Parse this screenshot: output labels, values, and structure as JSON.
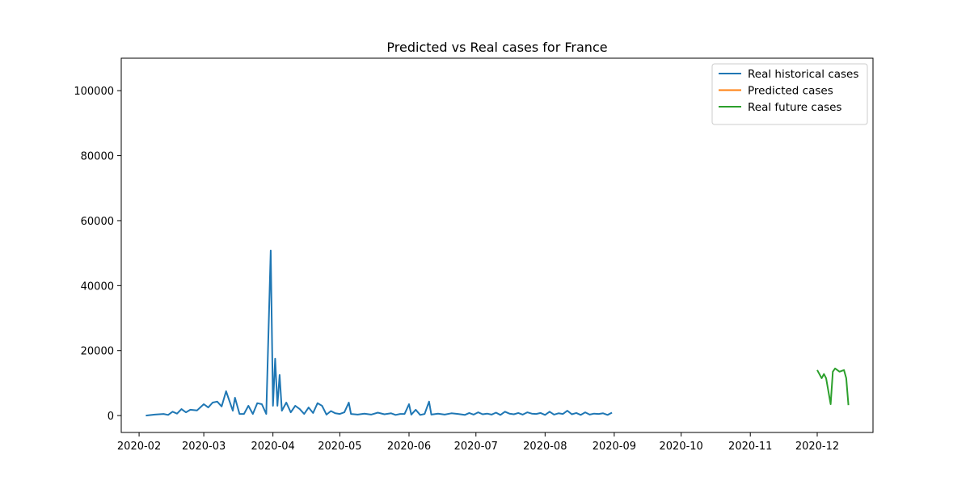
{
  "chart_data": {
    "type": "line",
    "title": "Predicted vs Real cases for France",
    "xlabel": "",
    "ylabel": "",
    "x_ticks": [
      "2020-02",
      "2020-03",
      "2020-04",
      "2020-05",
      "2020-06",
      "2020-07",
      "2020-08",
      "2020-09",
      "2020-10",
      "2020-11",
      "2020-12"
    ],
    "y_ticks": [
      0,
      20000,
      40000,
      60000,
      80000,
      100000
    ],
    "xlim": [
      "2020-01-24",
      "2020-12-26"
    ],
    "ylim": [
      -5200,
      110000
    ],
    "legend_position": "top-right",
    "grid": false,
    "series": [
      {
        "name": "Real historical cases",
        "color": "#1f77b4",
        "points": [
          [
            "2020-02-04",
            0
          ],
          [
            "2020-02-08",
            300
          ],
          [
            "2020-02-12",
            500
          ],
          [
            "2020-02-14",
            200
          ],
          [
            "2020-02-16",
            1200
          ],
          [
            "2020-02-18",
            600
          ],
          [
            "2020-02-20",
            2000
          ],
          [
            "2020-02-22",
            1000
          ],
          [
            "2020-02-24",
            1800
          ],
          [
            "2020-02-27",
            1600
          ],
          [
            "2020-03-01",
            3500
          ],
          [
            "2020-03-03",
            2500
          ],
          [
            "2020-03-05",
            4000
          ],
          [
            "2020-03-07",
            4300
          ],
          [
            "2020-03-09",
            2800
          ],
          [
            "2020-03-11",
            7500
          ],
          [
            "2020-03-14",
            1500
          ],
          [
            "2020-03-15",
            5500
          ],
          [
            "2020-03-17",
            500
          ],
          [
            "2020-03-19",
            500
          ],
          [
            "2020-03-21",
            3000
          ],
          [
            "2020-03-23",
            500
          ],
          [
            "2020-03-25",
            3800
          ],
          [
            "2020-03-27",
            3500
          ],
          [
            "2020-03-29",
            500
          ],
          [
            "2020-03-31",
            50800
          ],
          [
            "2020-04-01",
            3000
          ],
          [
            "2020-04-02",
            17500
          ],
          [
            "2020-04-03",
            3000
          ],
          [
            "2020-04-04",
            12500
          ],
          [
            "2020-04-05",
            1500
          ],
          [
            "2020-04-07",
            4000
          ],
          [
            "2020-04-09",
            1000
          ],
          [
            "2020-04-11",
            3000
          ],
          [
            "2020-04-13",
            2000
          ],
          [
            "2020-04-15",
            500
          ],
          [
            "2020-04-17",
            2500
          ],
          [
            "2020-04-19",
            800
          ],
          [
            "2020-04-21",
            3800
          ],
          [
            "2020-04-23",
            3000
          ],
          [
            "2020-04-25",
            300
          ],
          [
            "2020-04-27",
            1400
          ],
          [
            "2020-04-29",
            700
          ],
          [
            "2020-05-01",
            500
          ],
          [
            "2020-05-03",
            1000
          ],
          [
            "2020-05-05",
            4000
          ],
          [
            "2020-05-06",
            500
          ],
          [
            "2020-05-09",
            300
          ],
          [
            "2020-05-12",
            600
          ],
          [
            "2020-05-15",
            300
          ],
          [
            "2020-05-18",
            900
          ],
          [
            "2020-05-21",
            400
          ],
          [
            "2020-05-24",
            700
          ],
          [
            "2020-05-26",
            200
          ],
          [
            "2020-05-28",
            500
          ],
          [
            "2020-05-30",
            500
          ],
          [
            "2020-06-01",
            3500
          ],
          [
            "2020-06-02",
            300
          ],
          [
            "2020-06-04",
            1800
          ],
          [
            "2020-06-06",
            200
          ],
          [
            "2020-06-08",
            500
          ],
          [
            "2020-06-10",
            4300
          ],
          [
            "2020-06-11",
            300
          ],
          [
            "2020-06-14",
            600
          ],
          [
            "2020-06-17",
            300
          ],
          [
            "2020-06-20",
            700
          ],
          [
            "2020-06-23",
            500
          ],
          [
            "2020-06-26",
            200
          ],
          [
            "2020-06-28",
            800
          ],
          [
            "2020-06-30",
            300
          ],
          [
            "2020-07-02",
            1000
          ],
          [
            "2020-07-04",
            400
          ],
          [
            "2020-07-06",
            600
          ],
          [
            "2020-07-08",
            300
          ],
          [
            "2020-07-10",
            900
          ],
          [
            "2020-07-12",
            200
          ],
          [
            "2020-07-14",
            1200
          ],
          [
            "2020-07-16",
            600
          ],
          [
            "2020-07-18",
            400
          ],
          [
            "2020-07-20",
            800
          ],
          [
            "2020-07-22",
            300
          ],
          [
            "2020-07-24",
            1000
          ],
          [
            "2020-07-26",
            600
          ],
          [
            "2020-07-28",
            500
          ],
          [
            "2020-07-30",
            800
          ],
          [
            "2020-08-01",
            200
          ],
          [
            "2020-08-03",
            1200
          ],
          [
            "2020-08-05",
            300
          ],
          [
            "2020-08-07",
            700
          ],
          [
            "2020-08-09",
            500
          ],
          [
            "2020-08-11",
            1500
          ],
          [
            "2020-08-13",
            400
          ],
          [
            "2020-08-15",
            800
          ],
          [
            "2020-08-17",
            200
          ],
          [
            "2020-08-19",
            1000
          ],
          [
            "2020-08-21",
            300
          ],
          [
            "2020-08-23",
            600
          ],
          [
            "2020-08-25",
            500
          ],
          [
            "2020-08-27",
            700
          ],
          [
            "2020-08-29",
            200
          ],
          [
            "2020-08-31",
            900
          ]
        ]
      },
      {
        "name": "Predicted cases",
        "color": "#ff7f0e",
        "points": []
      },
      {
        "name": "Real future cases",
        "color": "#2ca02c",
        "points": [
          [
            "2020-12-01",
            14000
          ],
          [
            "2020-12-03",
            11500
          ],
          [
            "2020-12-04",
            12800
          ],
          [
            "2020-12-05",
            11500
          ],
          [
            "2020-12-07",
            3500
          ],
          [
            "2020-12-08",
            13500
          ],
          [
            "2020-12-09",
            14500
          ],
          [
            "2020-12-11",
            13500
          ],
          [
            "2020-12-13",
            14000
          ],
          [
            "2020-12-14",
            11500
          ],
          [
            "2020-12-15",
            3200
          ]
        ]
      }
    ]
  }
}
